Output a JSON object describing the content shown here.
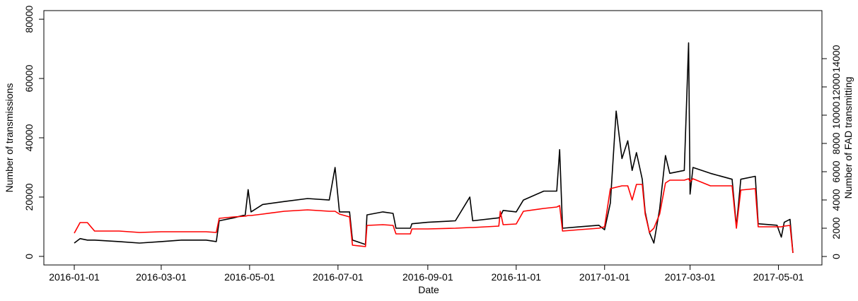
{
  "chart_data": {
    "type": "line",
    "x_label": "Date",
    "y_label": "Number of transmissions",
    "y2_label": "Number of FAD transmitting",
    "x": [
      "2016-01-01",
      "2016-01-05",
      "2016-01-10",
      "2016-01-15",
      "2016-02-01",
      "2016-02-15",
      "2016-03-01",
      "2016-03-15",
      "2016-04-01",
      "2016-04-08",
      "2016-04-10",
      "2016-04-20",
      "2016-04-28",
      "2016-04-30",
      "2016-05-02",
      "2016-05-10",
      "2016-05-25",
      "2016-06-10",
      "2016-06-25",
      "2016-06-29",
      "2016-07-02",
      "2016-07-09",
      "2016-07-11",
      "2016-07-20",
      "2016-07-21",
      "2016-08-01",
      "2016-08-08",
      "2016-08-10",
      "2016-08-20",
      "2016-08-21",
      "2016-09-01",
      "2016-09-20",
      "2016-09-30",
      "2016-10-02",
      "2016-10-20",
      "2016-10-21",
      "2016-10-23",
      "2016-11-01",
      "2016-11-06",
      "2016-11-20",
      "2016-11-29",
      "2016-12-01",
      "2016-12-03",
      "2016-12-15",
      "2016-12-28",
      "2017-01-01",
      "2017-01-05",
      "2017-01-09",
      "2017-01-13",
      "2017-01-17",
      "2017-01-20",
      "2017-01-23",
      "2017-01-27",
      "2017-01-29",
      "2017-02-01",
      "2017-02-04",
      "2017-02-08",
      "2017-02-12",
      "2017-02-15",
      "2017-02-25",
      "2017-02-28",
      "2017-03-01",
      "2017-03-03",
      "2017-03-15",
      "2017-03-30",
      "2017-04-02",
      "2017-04-05",
      "2017-04-15",
      "2017-04-17",
      "2017-04-30",
      "2017-05-03",
      "2017-05-05",
      "2017-05-09",
      "2017-05-11"
    ],
    "series": [
      {
        "color": "#000000",
        "axis": "y",
        "values": [
          4500,
          6000,
          5500,
          5500,
          5000,
          4500,
          5000,
          5500,
          5500,
          5000,
          12000,
          13000,
          14000,
          22500,
          15000,
          17500,
          18500,
          19500,
          19000,
          30000,
          15000,
          15000,
          5500,
          4000,
          14000,
          15000,
          14500,
          9500,
          9500,
          11000,
          11500,
          12000,
          20000,
          12000,
          13000,
          13500,
          15500,
          15000,
          19000,
          22000,
          22000,
          36000,
          9500,
          10000,
          10500,
          9000,
          18000,
          49000,
          33000,
          39000,
          29000,
          35000,
          26000,
          15000,
          8000,
          4500,
          16000,
          34000,
          28000,
          29000,
          72000,
          21000,
          30000,
          28000,
          26000,
          10000,
          26000,
          27000,
          11000,
          10500,
          6500,
          11500,
          12500,
          1200
        ]
      },
      {
        "color": "#ff0000",
        "axis": "y2",
        "values": [
          1650,
          2400,
          2400,
          1800,
          1800,
          1700,
          1750,
          1750,
          1750,
          1700,
          2700,
          2800,
          2850,
          2900,
          2900,
          3000,
          3200,
          3300,
          3200,
          3200,
          3000,
          2800,
          800,
          700,
          2200,
          2250,
          2200,
          1600,
          1600,
          1950,
          1950,
          2000,
          2050,
          2050,
          2150,
          3200,
          2250,
          2300,
          3200,
          3400,
          3500,
          3600,
          1800,
          1900,
          2000,
          2100,
          4800,
          4900,
          5000,
          5000,
          4000,
          5100,
          5100,
          3000,
          1700,
          2000,
          3000,
          5200,
          5400,
          5400,
          5500,
          5300,
          5500,
          5000,
          5000,
          2000,
          4700,
          4800,
          2100,
          2100,
          2100,
          2150,
          2200,
          250
        ]
      }
    ],
    "xlim": [
      "2015-12-11",
      "2017-05-31"
    ],
    "xticks": [
      "2016-01-01",
      "2016-03-01",
      "2016-05-01",
      "2016-07-01",
      "2016-09-01",
      "2016-11-01",
      "2017-01-01",
      "2017-03-01",
      "2017-05-01"
    ],
    "ylim": [
      -2900,
      82900
    ],
    "yticks": [
      0,
      20000,
      40000,
      60000,
      80000
    ],
    "y2lim": [
      -600,
      17400
    ],
    "y2ticks": [
      0,
      2000,
      4000,
      6000,
      8000,
      10000,
      12000,
      14000
    ]
  }
}
